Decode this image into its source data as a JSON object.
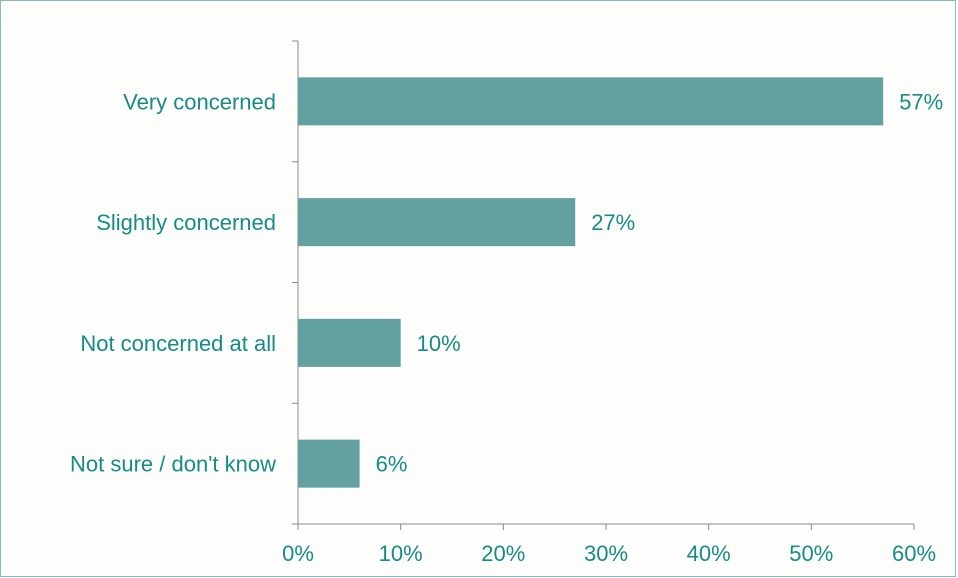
{
  "colors": {
    "bar": "#62a19f",
    "text": "#178b86",
    "axis": "#8a8a8a"
  },
  "chart_data": {
    "type": "bar",
    "orientation": "horizontal",
    "categories": [
      "Very concerned",
      "Slightly concerned",
      "Not concerned at all",
      "Not sure / don't know"
    ],
    "values": [
      57,
      27,
      10,
      6
    ],
    "value_labels": [
      "57%",
      "27%",
      "10%",
      "6%"
    ],
    "xlim": [
      0,
      60
    ],
    "xticks": [
      0,
      10,
      20,
      30,
      40,
      50,
      60
    ],
    "xtick_labels": [
      "0%",
      "10%",
      "20%",
      "30%",
      "40%",
      "50%",
      "60%"
    ],
    "grid": false,
    "legend": "none"
  }
}
